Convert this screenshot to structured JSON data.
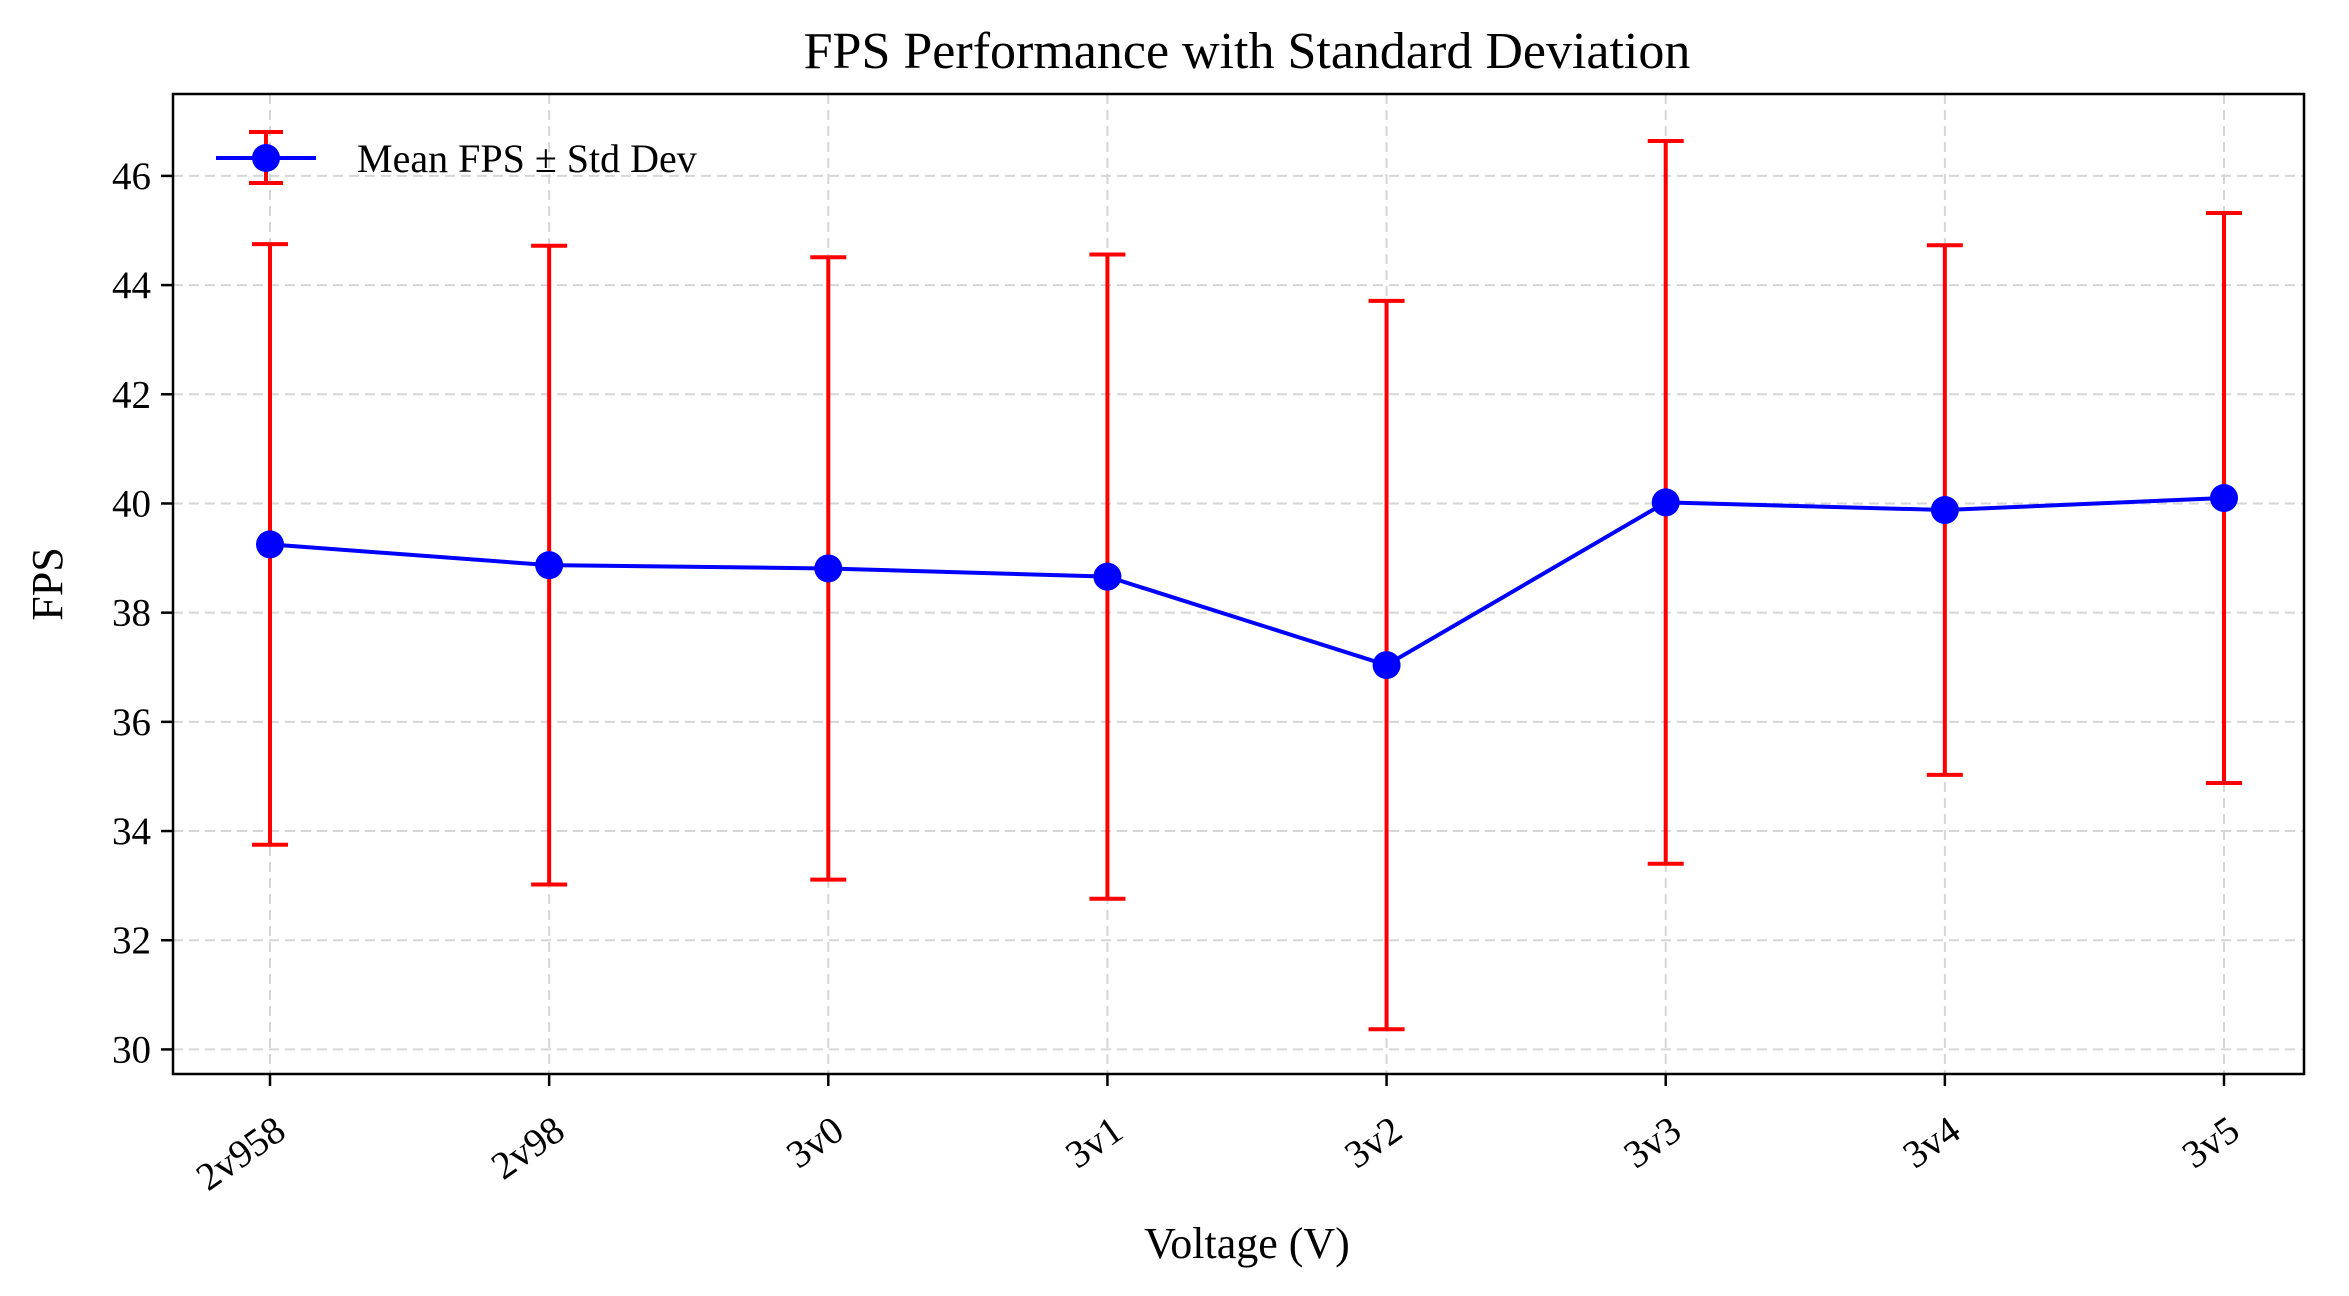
{
  "chart_data": {
    "type": "line",
    "title": "FPS Performance with Standard Deviation",
    "xlabel": "Voltage (V)",
    "ylabel": "FPS",
    "categories": [
      "2v958",
      "2v98",
      "3v0",
      "3v1",
      "3v2",
      "3v3",
      "3v4",
      "3v5"
    ],
    "series": [
      {
        "name": "Mean FPS ± Std Dev",
        "values": [
          39.25,
          38.87,
          38.81,
          38.66,
          37.04,
          40.02,
          39.88,
          40.1
        ],
        "std": [
          5.5,
          5.85,
          5.7,
          5.9,
          6.67,
          6.62,
          4.85,
          5.22
        ],
        "line_color": "#0000ff",
        "marker_color": "#0000ff",
        "error_color": "#ff0000"
      }
    ],
    "ylim": [
      29.55,
      47.5
    ],
    "yticks": [
      30,
      32,
      34,
      36,
      38,
      40,
      42,
      44,
      46
    ],
    "ytick_labels": [
      "30",
      "32",
      "34",
      "36",
      "38",
      "40",
      "42",
      "44",
      "46"
    ],
    "grid": true,
    "legend_position": "top-left"
  }
}
